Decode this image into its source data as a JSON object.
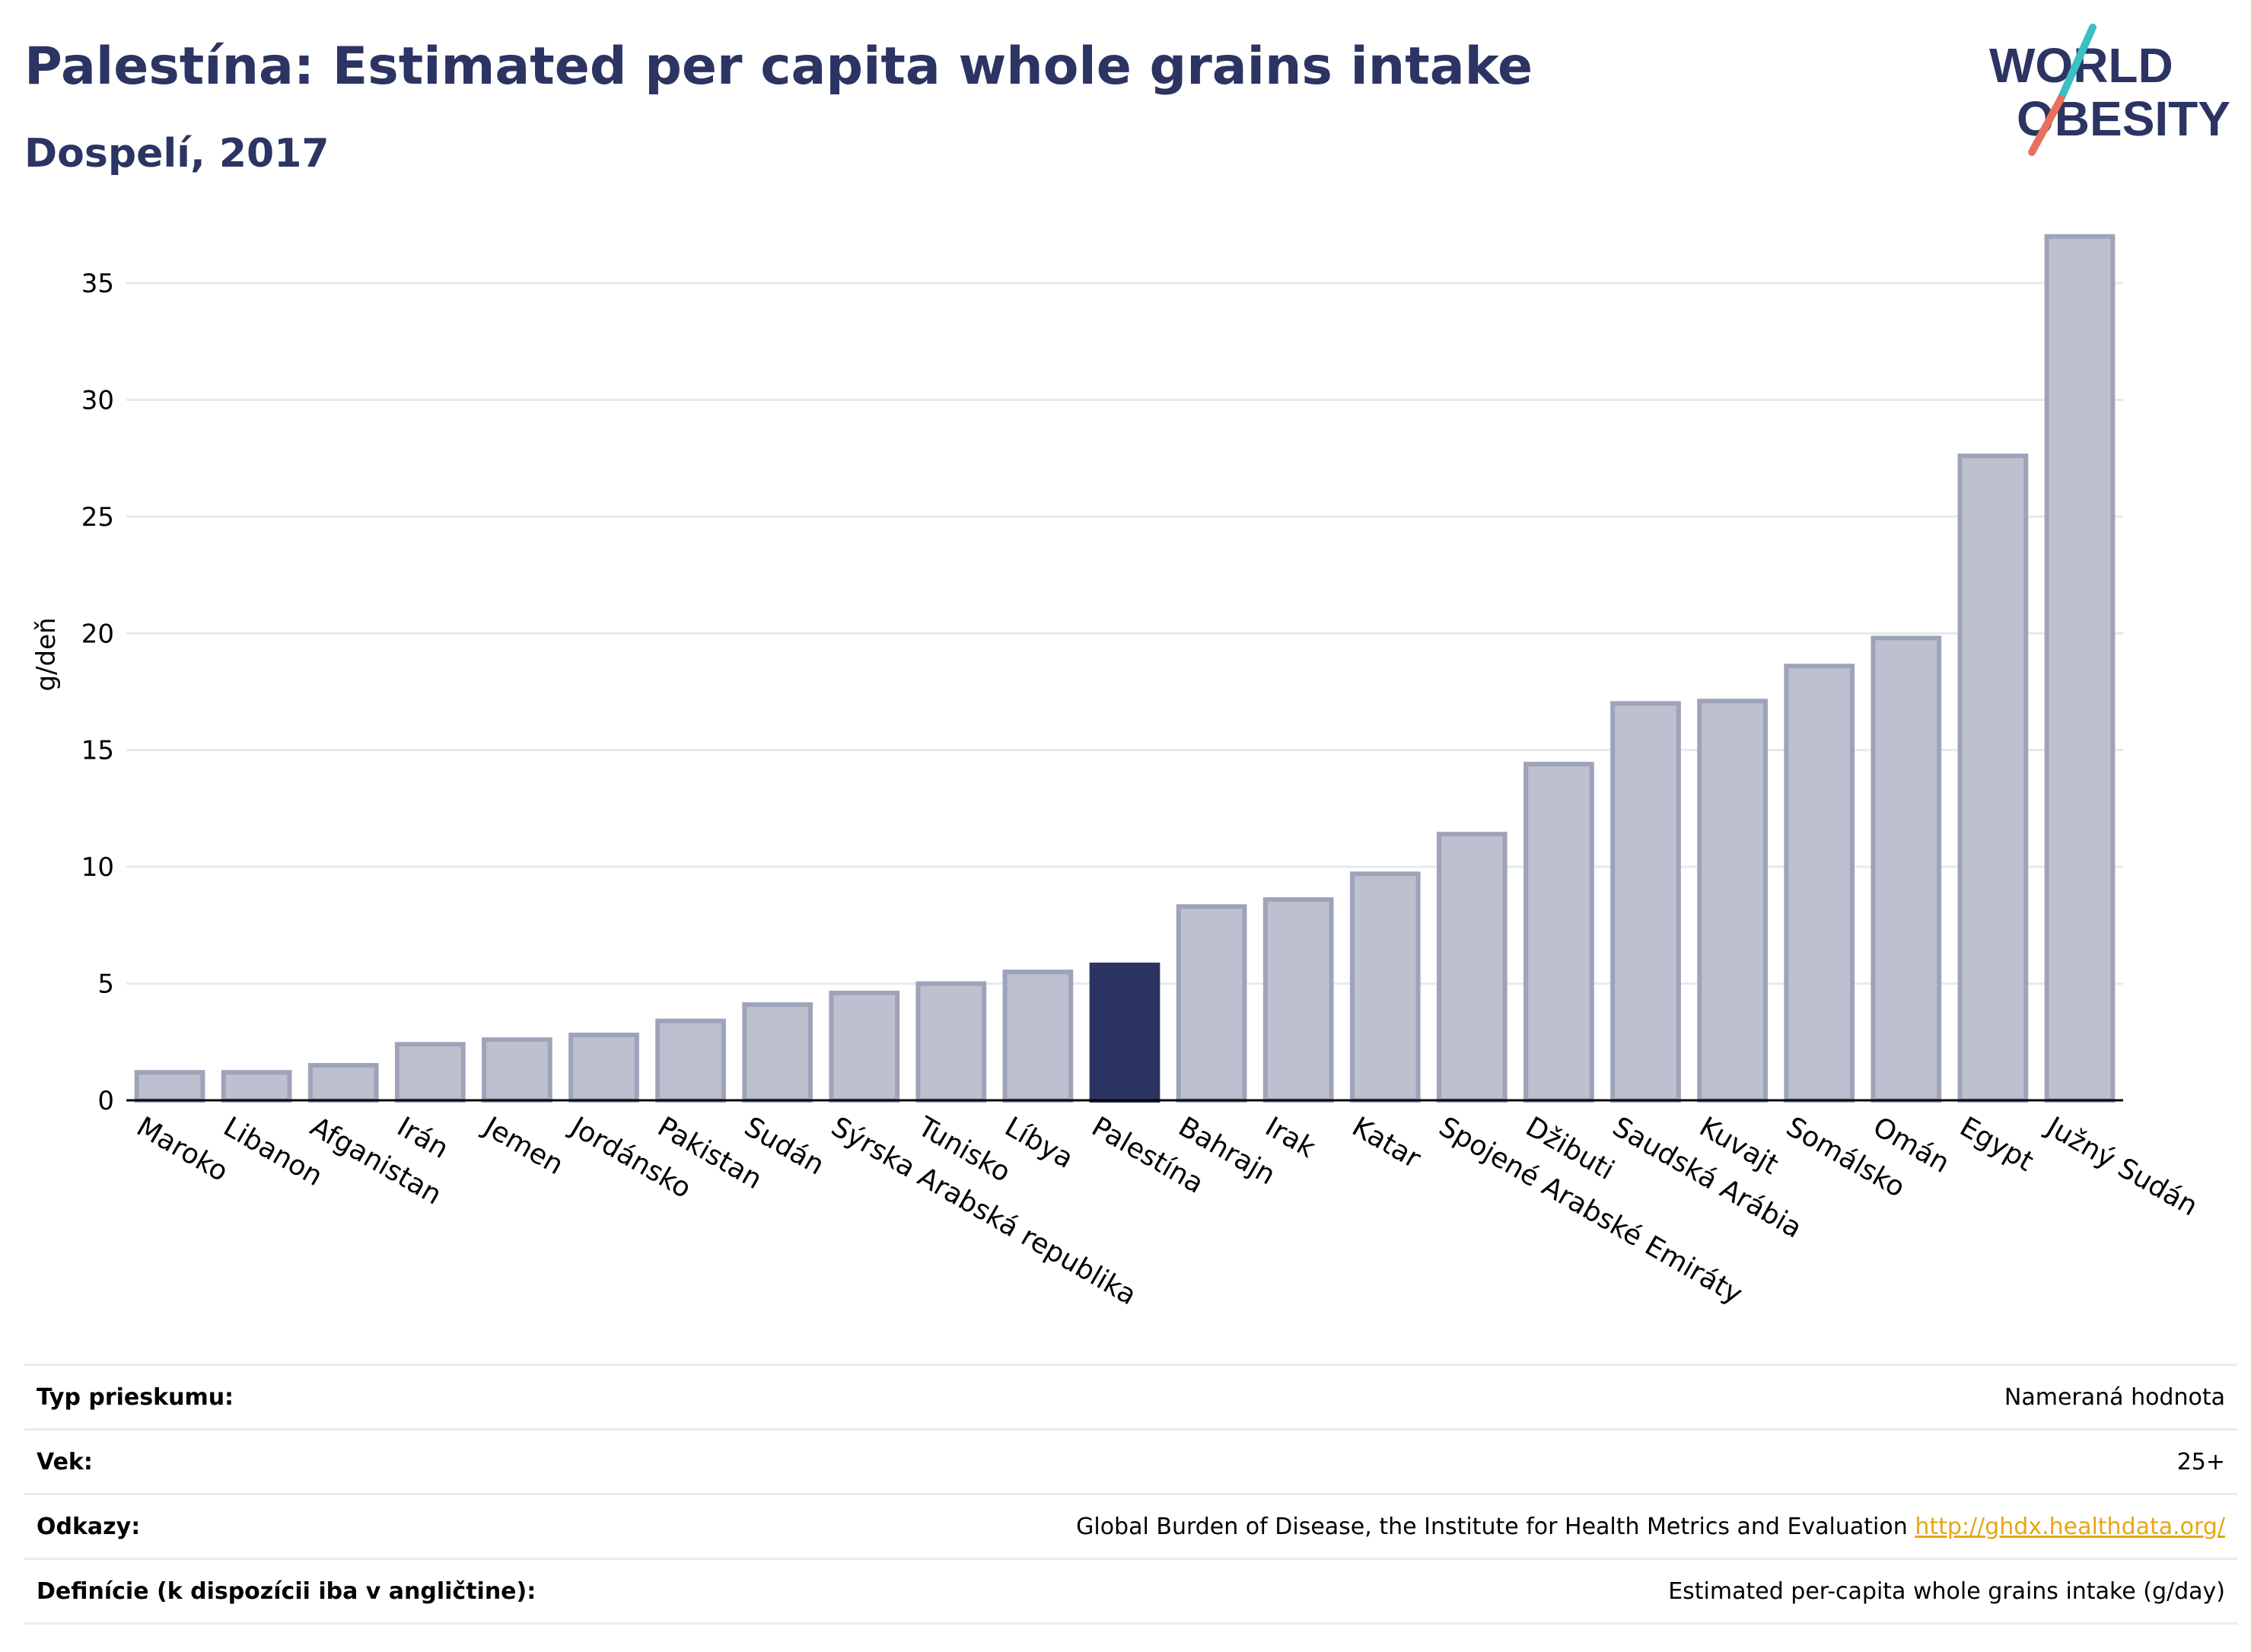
{
  "header": {
    "title": "Palestína: Estimated per capita whole grains intake",
    "subtitle": "Dospelí, 2017"
  },
  "logo": {
    "line1": "WORLD",
    "line2": "OBESITY"
  },
  "colors": {
    "highlight": "#2b3462",
    "bar_fill": "#bcc0cf",
    "bar_stroke": "#9ea3b9",
    "grid": "#e6e9ee"
  },
  "chart_data": {
    "type": "bar",
    "ylabel": "g/deň",
    "ylim": [
      0,
      38
    ],
    "yticks": [
      0,
      5,
      10,
      15,
      20,
      25,
      30,
      35
    ],
    "grid": true,
    "highlight": "Palestína",
    "categories": [
      "Maroko",
      "Libanon",
      "Afganistan",
      "Irán",
      "Jemen",
      "Jordánsko",
      "Pakistan",
      "Sudán",
      "Sýrska Arabská republika",
      "Tunisko",
      "Líbya",
      "Palestína",
      "Bahrajn",
      "Irak",
      "Katar",
      "Spojené Arabské Emiráty",
      "Džibuti",
      "Saudská Arábia",
      "Kuvajt",
      "Somálsko",
      "Omán",
      "Egypt",
      "Južný Sudán"
    ],
    "values": [
      1.2,
      1.2,
      1.5,
      2.4,
      2.6,
      2.8,
      3.4,
      4.1,
      4.6,
      5.0,
      5.5,
      5.8,
      8.3,
      8.6,
      9.7,
      11.4,
      14.4,
      17.0,
      17.1,
      18.6,
      19.8,
      27.6,
      37.0
    ]
  },
  "info": [
    {
      "label": "Typ prieskumu:",
      "value": "Nameraná hodnota",
      "link": ""
    },
    {
      "label": "Vek:",
      "value": "25+",
      "link": ""
    },
    {
      "label": "Odkazy:",
      "value": "Global Burden of Disease, the Institute for Health Metrics and Evaluation",
      "link": "http://ghdx.healthdata.org/"
    },
    {
      "label": "Definície (k dispozícii iba v angličtine):",
      "value": "Estimated per-capita whole grains intake (g/day)",
      "link": ""
    }
  ]
}
